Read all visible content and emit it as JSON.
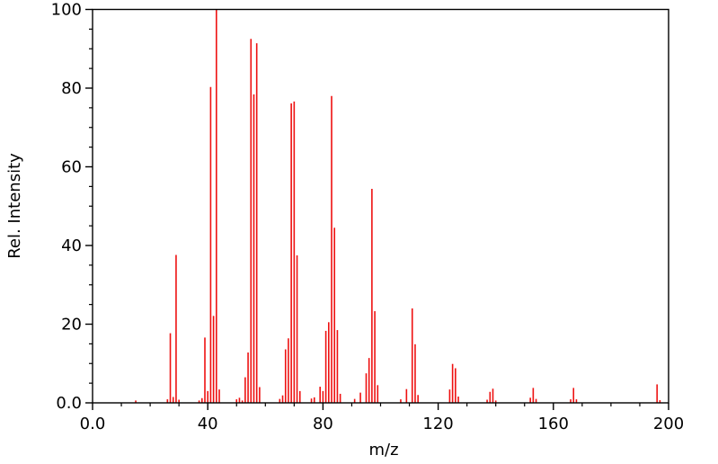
{
  "figure": {
    "background": "#ffffff",
    "axis_color": "#000000"
  },
  "chart_data": {
    "type": "bar",
    "subtype": "mass-spectrum-sticks",
    "title": "",
    "xlabel": "m/z",
    "ylabel": "Rel. Intensity",
    "xlim": [
      0,
      200
    ],
    "ylim": [
      0,
      100
    ],
    "grid": false,
    "legend": null,
    "bar_color": "#ee1111",
    "x_major_ticks": {
      "values": [
        0,
        40,
        80,
        120,
        160,
        200
      ],
      "labels": [
        "0.0",
        "40",
        "80",
        "120",
        "160",
        "200"
      ]
    },
    "y_major_ticks": {
      "values": [
        0,
        20,
        40,
        60,
        80,
        100
      ],
      "labels": [
        "0.0",
        "20",
        "40",
        "60",
        "80",
        "100"
      ]
    },
    "x_minor_step": 10,
    "y_minor_step": 5,
    "peaks": [
      [
        15,
        0.6
      ],
      [
        26,
        0.9
      ],
      [
        27,
        17.7
      ],
      [
        28,
        1.5
      ],
      [
        29,
        37.6
      ],
      [
        30,
        0.8
      ],
      [
        37,
        0.6
      ],
      [
        38,
        1.2
      ],
      [
        39,
        16.6
      ],
      [
        40,
        3.0
      ],
      [
        41,
        80.3
      ],
      [
        42,
        22.1
      ],
      [
        43,
        100.0
      ],
      [
        44,
        3.4
      ],
      [
        50,
        0.9
      ],
      [
        51,
        1.3
      ],
      [
        52,
        0.6
      ],
      [
        53,
        6.5
      ],
      [
        54,
        12.8
      ],
      [
        55,
        92.5
      ],
      [
        56,
        78.4
      ],
      [
        57,
        91.4
      ],
      [
        58,
        4.0
      ],
      [
        65,
        1.0
      ],
      [
        66,
        1.9
      ],
      [
        67,
        13.6
      ],
      [
        68,
        16.4
      ],
      [
        69,
        76.1
      ],
      [
        70,
        76.6
      ],
      [
        71,
        37.5
      ],
      [
        72,
        3.0
      ],
      [
        76,
        1.1
      ],
      [
        77,
        1.4
      ],
      [
        79,
        4.1
      ],
      [
        80,
        3.0
      ],
      [
        81,
        18.3
      ],
      [
        82,
        20.5
      ],
      [
        83,
        78.0
      ],
      [
        84,
        44.5
      ],
      [
        85,
        18.5
      ],
      [
        86,
        2.3
      ],
      [
        91,
        1.0
      ],
      [
        93,
        2.6
      ],
      [
        95,
        7.5
      ],
      [
        96,
        11.4
      ],
      [
        97,
        54.4
      ],
      [
        98,
        23.3
      ],
      [
        99,
        4.5
      ],
      [
        107,
        0.9
      ],
      [
        109,
        3.5
      ],
      [
        111,
        24.0
      ],
      [
        112,
        14.9
      ],
      [
        113,
        2.0
      ],
      [
        124,
        3.4
      ],
      [
        125,
        9.9
      ],
      [
        126,
        8.8
      ],
      [
        127,
        1.6
      ],
      [
        137,
        0.8
      ],
      [
        138,
        2.8
      ],
      [
        139,
        3.6
      ],
      [
        140,
        0.6
      ],
      [
        152,
        1.3
      ],
      [
        153,
        3.8
      ],
      [
        154,
        1.0
      ],
      [
        166,
        0.9
      ],
      [
        167,
        3.8
      ],
      [
        168,
        0.9
      ],
      [
        196,
        4.7
      ],
      [
        197,
        0.7
      ]
    ]
  }
}
